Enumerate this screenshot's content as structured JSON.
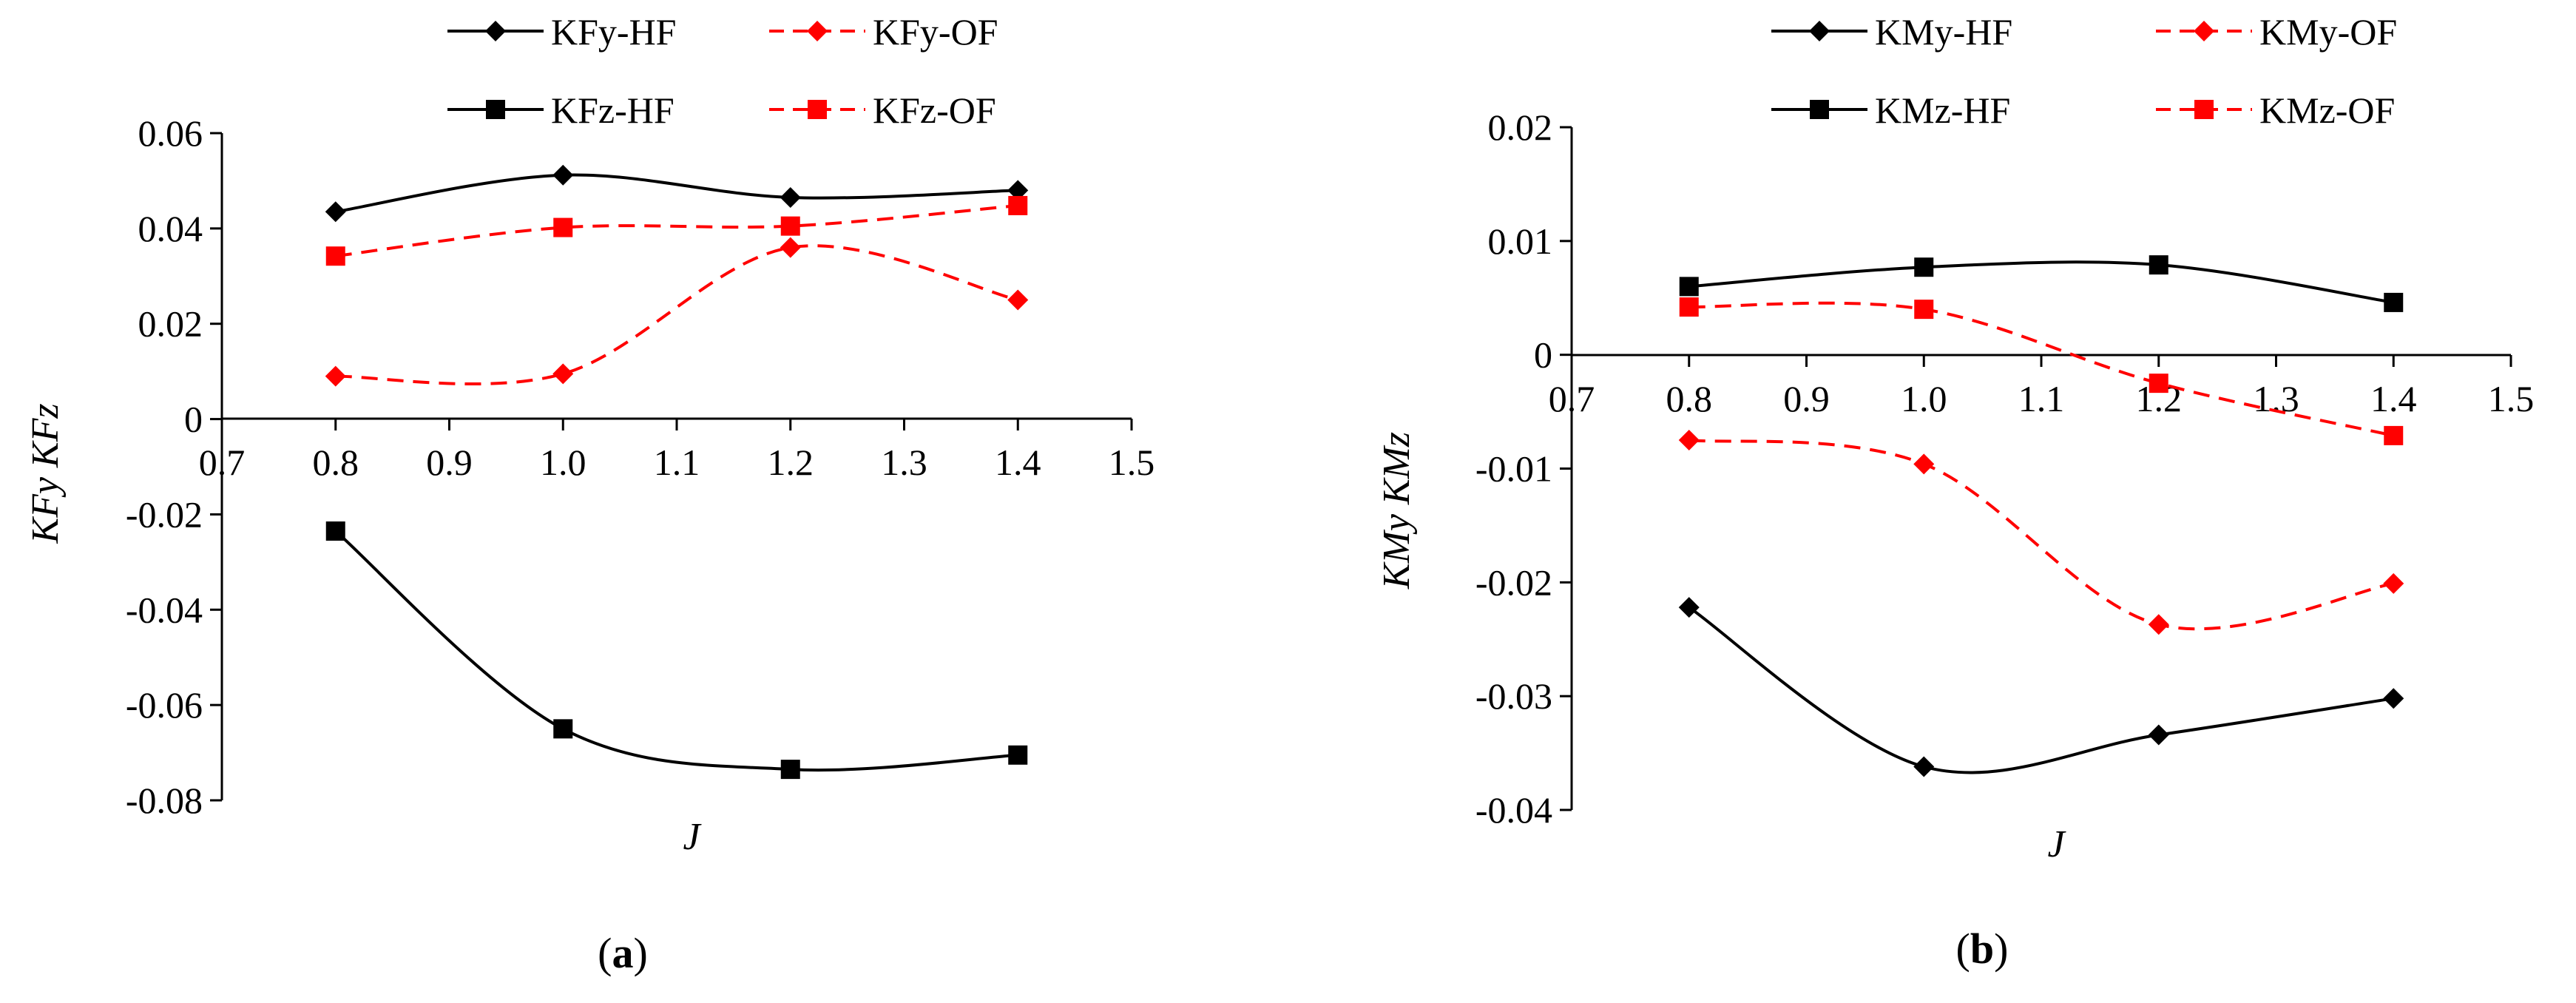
{
  "chart_data": [
    {
      "type": "line",
      "panel_label": "a",
      "xlabel": "J",
      "ylabel": "KFy  KFz",
      "xlim": [
        0.7,
        1.5
      ],
      "ylim": [
        -0.08,
        0.06
      ],
      "x_ticks": [
        "0.7",
        "0.8",
        "0.9",
        "1.0",
        "1.1",
        "1.2",
        "1.3",
        "1.4",
        "1.5"
      ],
      "y_ticks": [
        "-0.08",
        "-0.06",
        "-0.04",
        "-0.02",
        "0",
        "0.02",
        "0.04",
        "0.06"
      ],
      "legend_position": "top",
      "grid": false,
      "series": [
        {
          "name": "KFy-HF",
          "color": "#000000",
          "dashed": false,
          "marker": "diamond",
          "x": [
            0.8,
            1.0,
            1.2,
            1.4
          ],
          "values": [
            0.0435,
            0.0512,
            0.0465,
            0.048
          ]
        },
        {
          "name": "KFy-OF",
          "color": "#ff0000",
          "dashed": true,
          "marker": "diamond",
          "x": [
            0.8,
            1.0,
            1.2,
            1.4
          ],
          "values": [
            0.009,
            0.0095,
            0.036,
            0.025
          ]
        },
        {
          "name": "KFz-HF",
          "color": "#000000",
          "dashed": false,
          "marker": "square",
          "x": [
            0.8,
            1.0,
            1.2,
            1.4
          ],
          "values": [
            -0.0235,
            -0.065,
            -0.0735,
            -0.0705
          ]
        },
        {
          "name": "KFz-OF",
          "color": "#ff0000",
          "dashed": true,
          "marker": "square",
          "x": [
            0.8,
            1.0,
            1.2,
            1.4
          ],
          "values": [
            0.0342,
            0.0402,
            0.0405,
            0.0448
          ]
        }
      ]
    },
    {
      "type": "line",
      "panel_label": "b",
      "xlabel": "J",
      "ylabel": "KMy  KMz",
      "xlim": [
        0.7,
        1.5
      ],
      "ylim": [
        -0.04,
        0.02
      ],
      "x_ticks": [
        "0.7",
        "0.8",
        "0.9",
        "1.0",
        "1.1",
        "1.2",
        "1.3",
        "1.4",
        "1.5"
      ],
      "y_ticks": [
        "-0.04",
        "-0.03",
        "-0.02",
        "-0.01",
        "0",
        "0.01",
        "0.02"
      ],
      "legend_position": "top",
      "grid": false,
      "series": [
        {
          "name": "KMy-HF",
          "color": "#000000",
          "dashed": false,
          "marker": "diamond",
          "x": [
            0.8,
            1.0,
            1.2,
            1.4
          ],
          "values": [
            -0.0222,
            -0.0362,
            -0.0334,
            -0.0302
          ]
        },
        {
          "name": "KMy-OF",
          "color": "#ff0000",
          "dashed": true,
          "marker": "diamond",
          "x": [
            0.8,
            1.0,
            1.2,
            1.4
          ],
          "values": [
            -0.0075,
            -0.0096,
            -0.0237,
            -0.0201
          ]
        },
        {
          "name": "KMz-HF",
          "color": "#000000",
          "dashed": false,
          "marker": "square",
          "x": [
            0.8,
            1.0,
            1.2,
            1.4
          ],
          "values": [
            0.006,
            0.0077,
            0.0079,
            0.0046
          ]
        },
        {
          "name": "KMz-OF",
          "color": "#ff0000",
          "dashed": true,
          "marker": "square",
          "x": [
            0.8,
            1.0,
            1.2,
            1.4
          ],
          "values": [
            0.0042,
            0.004,
            -0.0025,
            -0.0071
          ]
        }
      ]
    }
  ]
}
